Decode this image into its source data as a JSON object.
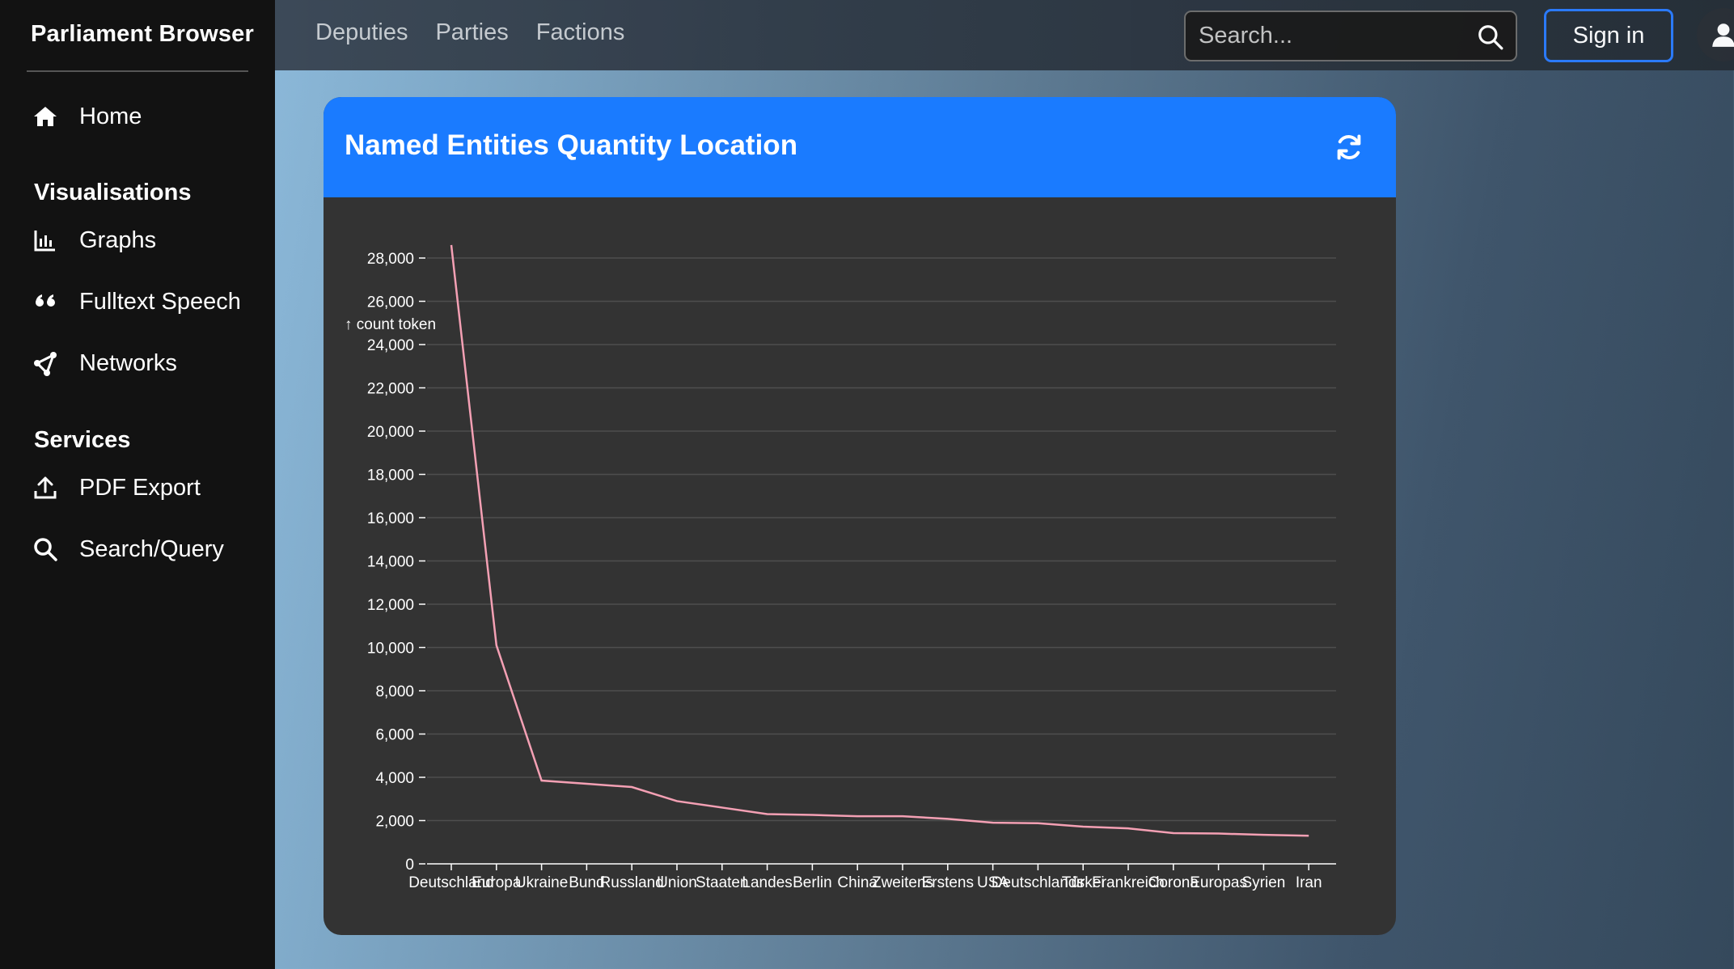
{
  "sidebar": {
    "brand": "Parliament Browser",
    "home": "Home",
    "section_visualisations": "Visualisations",
    "graphs": "Graphs",
    "fulltext": "Fulltext Speech",
    "networks": "Networks",
    "section_services": "Services",
    "pdf_export": "PDF Export",
    "search_query": "Search/Query"
  },
  "topbar": {
    "nav": [
      "Deputies",
      "Parties",
      "Factions"
    ],
    "search_placeholder": "Search...",
    "signin": "Sign in"
  },
  "card": {
    "title": "Named Entities Quantity Location"
  },
  "colors": {
    "accent": "#1a7bff",
    "line": "#f4a0b4",
    "card_bg": "#333333",
    "sidebar_bg": "#121212"
  },
  "chart_data": {
    "type": "line",
    "ylabel": "↑ count token",
    "xlabel": "",
    "ylim": [
      0,
      28000
    ],
    "yticks": [
      0,
      2000,
      4000,
      6000,
      8000,
      10000,
      12000,
      14000,
      16000,
      18000,
      20000,
      22000,
      24000,
      26000,
      28000
    ],
    "categories": [
      "Deutschland",
      "Europa",
      "Ukraine",
      "Bund",
      "Russland",
      "Union",
      "Staaten",
      "Landes",
      "Berlin",
      "China",
      "Zweitens",
      "Erstens",
      "USA",
      "Deutschlands",
      "Türkei",
      "Frankreich",
      "Corona",
      "Europas",
      "Syrien",
      "Iran"
    ],
    "values": [
      28600,
      10100,
      3850,
      3700,
      3550,
      2900,
      2600,
      2300,
      2260,
      2200,
      2200,
      2080,
      1900,
      1880,
      1720,
      1640,
      1420,
      1400,
      1340,
      1300
    ],
    "grid": true
  }
}
